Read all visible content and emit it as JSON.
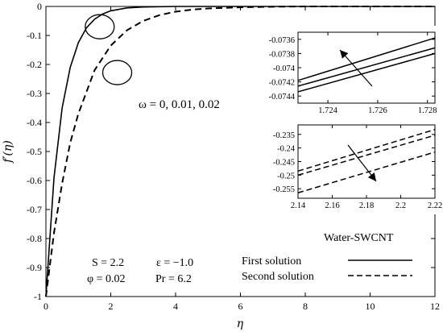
{
  "chart_data": {
    "type": "line",
    "xlabel": "η",
    "ylabel": "f′(η)",
    "xlim": [
      0,
      12
    ],
    "ylim": [
      -1,
      0
    ],
    "xticks": [
      0,
      2,
      4,
      6,
      8,
      10,
      12
    ],
    "yticks": [
      0,
      -0.1,
      -0.2,
      -0.3,
      -0.4,
      -0.5,
      -0.6,
      -0.7,
      -0.8,
      -0.9,
      -1
    ],
    "grid": false,
    "series": [
      {
        "name": "First solution",
        "style": "solid",
        "x": [
          0,
          0.25,
          0.5,
          0.75,
          1.0,
          1.25,
          1.5,
          1.75,
          2.0,
          2.5,
          3.0,
          3.5,
          4.0,
          5.0,
          6.0,
          8.0,
          10.0,
          12.0
        ],
        "y": [
          -1.0,
          -0.59,
          -0.35,
          -0.21,
          -0.125,
          -0.074,
          -0.044,
          -0.026,
          -0.015,
          -0.005,
          -0.002,
          -0.001,
          0,
          0,
          0,
          0,
          0,
          0
        ]
      },
      {
        "name": "Second solution",
        "style": "dashed",
        "x": [
          0,
          0.25,
          0.5,
          0.75,
          1.0,
          1.5,
          2.0,
          2.5,
          3.0,
          3.5,
          4.0,
          4.5,
          5.0,
          6.0,
          7.0,
          8.0,
          9.0,
          10.0,
          12.0
        ],
        "y": [
          -1.0,
          -0.78,
          -0.61,
          -0.47,
          -0.37,
          -0.22,
          -0.135,
          -0.082,
          -0.05,
          -0.03,
          -0.018,
          -0.011,
          -0.007,
          -0.003,
          -0.001,
          0,
          0,
          0,
          0
        ]
      }
    ],
    "legend": {
      "placement": "bottom-right",
      "title": "Water-SWCNT",
      "entries": [
        "First solution",
        "Second solution"
      ]
    },
    "annotations": {
      "omega": "ω = 0, 0.01, 0.02",
      "params": [
        "S = 2.2",
        "ε = −1.0",
        "φ = 0.02",
        "Pr = 6.2"
      ]
    },
    "insets": [
      {
        "type": "line",
        "xlim": [
          1.7228,
          1.7283
        ],
        "ylim": [
          -0.0745,
          -0.0735
        ],
        "xticks": [
          1.724,
          1.726,
          1.728
        ],
        "ytick_labels": [
          "-0.0736",
          "-0.0738",
          "-0.074",
          "-0.0742",
          "-0.0744"
        ],
        "yticks": [
          -0.0736,
          -0.0738,
          -0.074,
          -0.0742,
          -0.0744
        ],
        "style": "solid",
        "lines": [
          {
            "x": [
              1.7228,
              1.7283
            ],
            "y": [
              -0.07418,
              -0.07358
            ]
          },
          {
            "x": [
              1.7228,
              1.7283
            ],
            "y": [
              -0.07426,
              -0.07372
            ]
          },
          {
            "x": [
              1.7228,
              1.7283
            ],
            "y": [
              -0.07434,
              -0.0738
            ]
          }
        ]
      },
      {
        "type": "line",
        "xlim": [
          2.14,
          2.22
        ],
        "ylim": [
          -0.2585,
          -0.2315
        ],
        "xticks": [
          2.14,
          2.16,
          2.18,
          2.2,
          2.22
        ],
        "xtick_labels": [
          "2.14",
          "2.16",
          "2.18",
          "2.2",
          "2.22"
        ],
        "ytick_labels": [
          "-0.235",
          "-0.24",
          "-0.245",
          "-0.25",
          "-0.255"
        ],
        "yticks": [
          -0.235,
          -0.24,
          -0.245,
          -0.25,
          -0.255
        ],
        "style": "dashed",
        "lines": [
          {
            "x": [
              2.14,
              2.22
            ],
            "y": [
              -0.2485,
              -0.2332
            ]
          },
          {
            "x": [
              2.14,
              2.22
            ],
            "y": [
              -0.25,
              -0.2353
            ]
          },
          {
            "x": [
              2.14,
              2.22
            ],
            "y": [
              -0.2565,
              -0.2415
            ]
          }
        ]
      }
    ]
  }
}
